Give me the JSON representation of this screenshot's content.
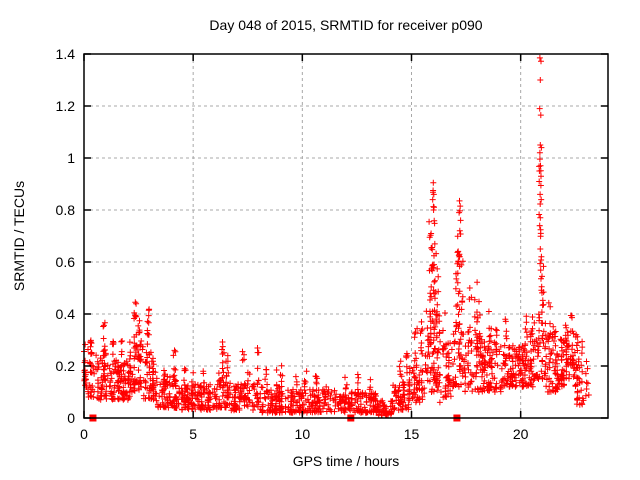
{
  "chart_data": {
    "type": "scatter",
    "title": "Day 048 of 2015, SRMTID for receiver p090",
    "xlabel": "GPS time / hours",
    "ylabel": "SRMTID / TECUs",
    "xlim": [
      0,
      24
    ],
    "ylim": [
      0,
      1.4
    ],
    "x_ticks": [
      0,
      5,
      10,
      15,
      20
    ],
    "x_tick_labels": [
      "0",
      "5",
      "10",
      "15",
      "20"
    ],
    "y_ticks": [
      0,
      0.2,
      0.4,
      0.6,
      0.8,
      1,
      1.2,
      1.4
    ],
    "y_tick_labels": [
      "0",
      "0.2",
      "0.4",
      "0.6",
      "0.8",
      "1",
      "1.2",
      "1.4"
    ],
    "grid": true,
    "legend": "none",
    "marker": "plus",
    "marker_color": "#ff0000",
    "grid_color": "#a8a8a8",
    "axis_color": "#000000",
    "zero_marker_hours": [
      0.41,
      12.22,
      17.08
    ],
    "band_segments": [
      [
        0.0,
        0.12,
        5,
        0.13,
        0.26
      ],
      [
        0.05,
        0.5,
        22,
        0.08,
        0.3
      ],
      [
        0.5,
        1.1,
        30,
        0.07,
        0.25
      ],
      [
        1.1,
        2.1,
        50,
        0.07,
        0.24
      ],
      [
        2.1,
        2.7,
        32,
        0.1,
        0.3
      ],
      [
        2.7,
        3.3,
        30,
        0.07,
        0.26
      ],
      [
        3.3,
        4.2,
        40,
        0.04,
        0.16
      ],
      [
        4.2,
        5.2,
        45,
        0.03,
        0.13
      ],
      [
        5.2,
        6.1,
        40,
        0.03,
        0.13
      ],
      [
        6.1,
        6.7,
        30,
        0.04,
        0.18
      ],
      [
        6.7,
        8.1,
        58,
        0.03,
        0.13
      ],
      [
        8.1,
        9.4,
        55,
        0.02,
        0.12
      ],
      [
        9.4,
        10.4,
        42,
        0.02,
        0.11
      ],
      [
        10.4,
        11.6,
        50,
        0.02,
        0.11
      ],
      [
        11.6,
        12.7,
        46,
        0.02,
        0.1
      ],
      [
        12.7,
        13.4,
        32,
        0.02,
        0.1
      ],
      [
        13.4,
        14.1,
        32,
        0.01,
        0.07
      ],
      [
        14.1,
        14.9,
        36,
        0.03,
        0.14
      ],
      [
        14.9,
        15.6,
        34,
        0.06,
        0.22
      ],
      [
        15.6,
        16.35,
        46,
        0.1,
        0.42
      ],
      [
        16.35,
        16.85,
        24,
        0.08,
        0.3
      ],
      [
        16.85,
        17.45,
        32,
        0.12,
        0.42
      ],
      [
        17.45,
        18.25,
        38,
        0.1,
        0.35
      ],
      [
        18.25,
        19.1,
        42,
        0.1,
        0.3
      ],
      [
        19.1,
        20.6,
        80,
        0.12,
        0.28
      ],
      [
        20.6,
        21.15,
        32,
        0.15,
        0.45
      ],
      [
        21.15,
        21.7,
        30,
        0.1,
        0.35
      ],
      [
        21.7,
        22.55,
        45,
        0.12,
        0.33
      ],
      [
        22.55,
        22.95,
        20,
        0.05,
        0.3
      ],
      [
        22.95,
        23.15,
        6,
        0.08,
        0.25
      ]
    ],
    "spike_columns": [
      [
        0.9,
        8,
        0.24,
        0.38
      ],
      [
        1.35,
        6,
        0.2,
        0.31
      ],
      [
        1.7,
        6,
        0.18,
        0.3
      ],
      [
        2.35,
        12,
        0.25,
        0.45
      ],
      [
        2.5,
        8,
        0.22,
        0.4
      ],
      [
        2.95,
        10,
        0.24,
        0.43
      ],
      [
        3.7,
        6,
        0.13,
        0.26
      ],
      [
        4.15,
        8,
        0.12,
        0.26
      ],
      [
        4.6,
        6,
        0.1,
        0.2
      ],
      [
        5.0,
        5,
        0.09,
        0.18
      ],
      [
        5.5,
        5,
        0.09,
        0.2
      ],
      [
        6.35,
        10,
        0.14,
        0.31
      ],
      [
        6.55,
        8,
        0.12,
        0.25
      ],
      [
        7.3,
        7,
        0.11,
        0.27
      ],
      [
        7.55,
        5,
        0.1,
        0.2
      ],
      [
        7.95,
        7,
        0.11,
        0.28
      ],
      [
        8.35,
        6,
        0.09,
        0.26
      ],
      [
        8.8,
        5,
        0.08,
        0.19
      ],
      [
        9.05,
        6,
        0.09,
        0.24
      ],
      [
        9.7,
        5,
        0.08,
        0.17
      ],
      [
        10.15,
        6,
        0.09,
        0.21
      ],
      [
        10.65,
        6,
        0.08,
        0.17
      ],
      [
        11.05,
        5,
        0.07,
        0.15
      ],
      [
        12.0,
        5,
        0.07,
        0.16
      ],
      [
        12.55,
        6,
        0.08,
        0.17
      ],
      [
        13.1,
        6,
        0.07,
        0.15
      ],
      [
        14.5,
        6,
        0.1,
        0.22
      ],
      [
        14.8,
        7,
        0.11,
        0.25
      ],
      [
        15.2,
        8,
        0.18,
        0.38
      ],
      [
        15.45,
        9,
        0.18,
        0.45
      ],
      [
        15.85,
        16,
        0.3,
        0.8
      ],
      [
        16.0,
        14,
        0.4,
        0.88
      ],
      [
        16.08,
        12,
        0.32,
        0.72
      ],
      [
        16.2,
        8,
        0.28,
        0.58
      ],
      [
        16.5,
        5,
        0.22,
        0.42
      ],
      [
        17.08,
        12,
        0.35,
        0.7
      ],
      [
        17.2,
        12,
        0.45,
        0.8
      ],
      [
        17.33,
        9,
        0.32,
        0.62
      ],
      [
        17.7,
        6,
        0.28,
        0.5
      ],
      [
        17.95,
        8,
        0.28,
        0.54
      ],
      [
        18.1,
        6,
        0.24,
        0.45
      ],
      [
        18.6,
        7,
        0.24,
        0.44
      ],
      [
        18.9,
        5,
        0.2,
        0.35
      ],
      [
        19.35,
        6,
        0.22,
        0.38
      ],
      [
        19.9,
        5,
        0.2,
        0.33
      ],
      [
        20.25,
        7,
        0.22,
        0.4
      ],
      [
        20.5,
        8,
        0.24,
        0.48
      ],
      [
        20.9,
        14,
        0.45,
        1.0
      ],
      [
        21.0,
        9,
        0.35,
        0.75
      ],
      [
        21.3,
        6,
        0.28,
        0.48
      ],
      [
        21.55,
        6,
        0.1,
        0.42
      ],
      [
        22.1,
        6,
        0.26,
        0.38
      ],
      [
        22.35,
        7,
        0.26,
        0.4
      ],
      [
        22.65,
        8,
        0.05,
        0.32
      ]
    ],
    "peak_points": [
      [
        20.88,
        1.385
      ],
      [
        20.93,
        1.372
      ],
      [
        20.9,
        1.3
      ],
      [
        20.87,
        1.19
      ],
      [
        20.92,
        1.165
      ],
      [
        20.9,
        1.05
      ],
      [
        20.95,
        1.04
      ],
      [
        20.88,
        1.02
      ],
      [
        20.91,
        0.97
      ],
      [
        20.86,
        0.95
      ],
      [
        20.93,
        0.93
      ],
      [
        20.89,
        0.86
      ],
      [
        20.94,
        0.84
      ],
      [
        20.9,
        0.77
      ],
      [
        20.87,
        0.74
      ],
      [
        20.92,
        0.71
      ],
      [
        20.9,
        0.65
      ],
      [
        20.95,
        0.62
      ],
      [
        16.0,
        0.905
      ],
      [
        15.99,
        0.875
      ],
      [
        16.02,
        0.86
      ],
      [
        15.97,
        0.84
      ],
      [
        16.01,
        0.8
      ],
      [
        17.2,
        0.835
      ],
      [
        17.23,
        0.815
      ],
      [
        17.18,
        0.79
      ],
      [
        17.25,
        0.76
      ],
      [
        17.21,
        0.72
      ],
      [
        16.3,
        0.06
      ],
      [
        16.35,
        0.1
      ],
      [
        16.45,
        0.08
      ],
      [
        0.05,
        0.16
      ],
      [
        0.03,
        0.175
      ],
      [
        0.07,
        0.15
      ]
    ]
  }
}
